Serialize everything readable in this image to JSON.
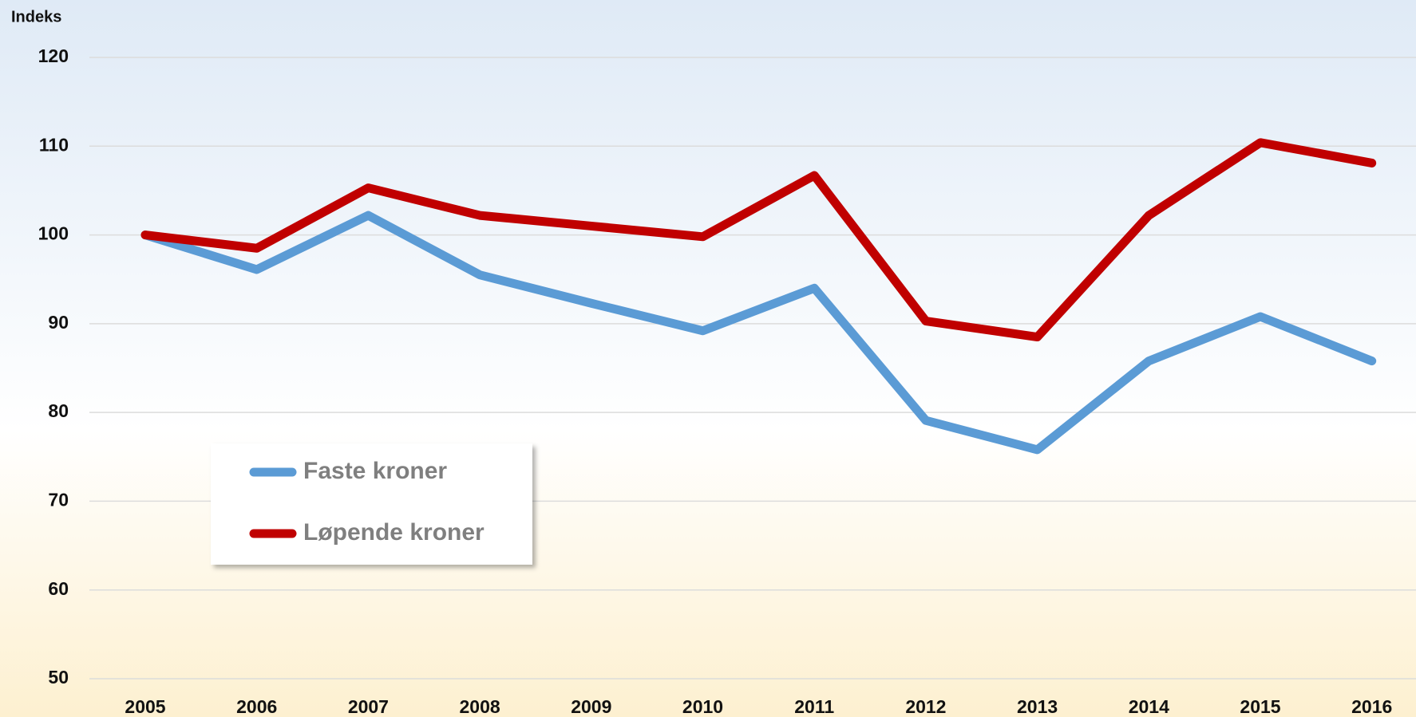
{
  "chart_data": {
    "type": "line",
    "y_label": "Indeks",
    "categories": [
      "2005",
      "2006",
      "2007",
      "2008",
      "2009",
      "2010",
      "2011",
      "2012",
      "2013",
      "2014",
      "2015",
      "2016"
    ],
    "series": [
      {
        "name": "Faste kroner",
        "color": "#5b9bd5",
        "values": [
          100,
          96.1,
          102.2,
          95.5,
          92.3,
          89.2,
          94.0,
          79.1,
          75.8,
          85.8,
          90.8,
          85.8
        ]
      },
      {
        "name": "Løpende kroner",
        "color": "#c00000",
        "values": [
          100,
          98.5,
          105.3,
          102.2,
          101.0,
          99.8,
          106.7,
          90.3,
          88.5,
          102.2,
          110.4,
          108.1
        ]
      }
    ],
    "ylim": [
      50,
      120
    ],
    "yticks": [
      50,
      60,
      70,
      80,
      90,
      100,
      110,
      120
    ],
    "grid": true,
    "legend": "lower left"
  }
}
